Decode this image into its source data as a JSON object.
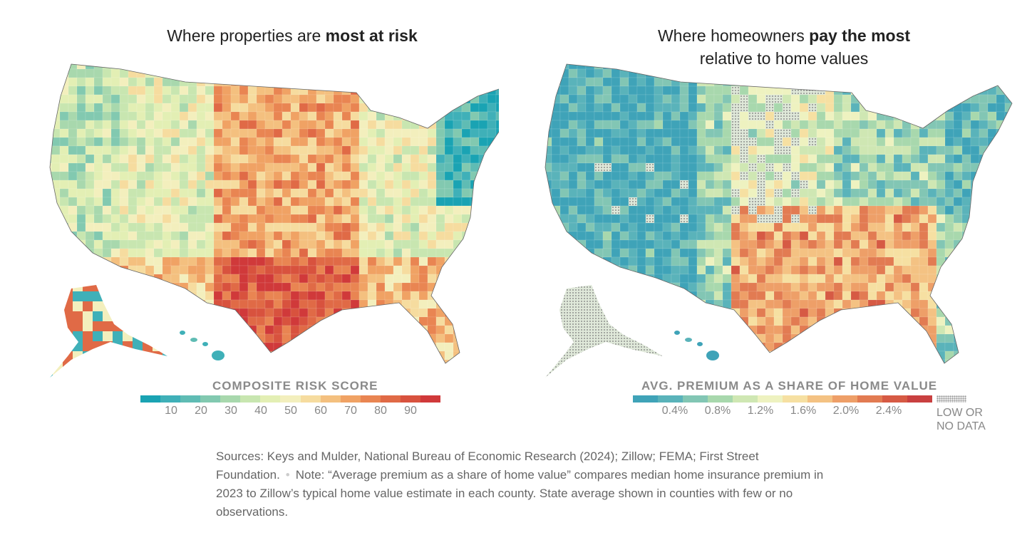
{
  "left_panel": {
    "title_plain": "Where properties are ",
    "title_bold": "most at risk",
    "legend_title": "COMPOSITE RISK SCORE",
    "ticks": [
      "10",
      "20",
      "30",
      "40",
      "50",
      "60",
      "70",
      "80",
      "90"
    ],
    "scale_colors": [
      "#1aa3b3",
      "#3fb0b8",
      "#5fbcb4",
      "#82c9b0",
      "#a8d8ad",
      "#c8e6b0",
      "#e3efb4",
      "#f3efbd",
      "#f6dc9f",
      "#f4c07f",
      "#f0a264",
      "#e98552",
      "#e06a46",
      "#d8523e",
      "#d0393a"
    ]
  },
  "right_panel": {
    "title_line1_plain": "Where homeowners ",
    "title_line1_bold": "pay the most",
    "title_line2": "relative to home values",
    "legend_title": "AVG. PREMIUM AS A SHARE OF HOME VALUE",
    "ticks": [
      "0.4%",
      "0.8%",
      "1.2%",
      "1.6%",
      "2.0%",
      "2.4%"
    ],
    "scale_colors": [
      "#3fa3b8",
      "#5ab3ba",
      "#82c6b4",
      "#a8d8ad",
      "#cfe7b3",
      "#eef2c0",
      "#f6e0a2",
      "#f4c283",
      "#ee9f68",
      "#e27b52",
      "#d65a44",
      "#c94040"
    ],
    "no_data_label_line1": "LOW OR",
    "no_data_label_line2": "NO DATA"
  },
  "footer": {
    "sources_text": "Sources: Keys and Mulder, National Bureau of Economic Research (2024); Zillow; FEMA; First Street Foundation.",
    "dot": "•",
    "note_text": "Note: “Average premium as a share of home value” compares median home insurance premium in 2023 to Zillow’s typical home value estimate in each county. State average shown in counties with few or no observations."
  }
}
